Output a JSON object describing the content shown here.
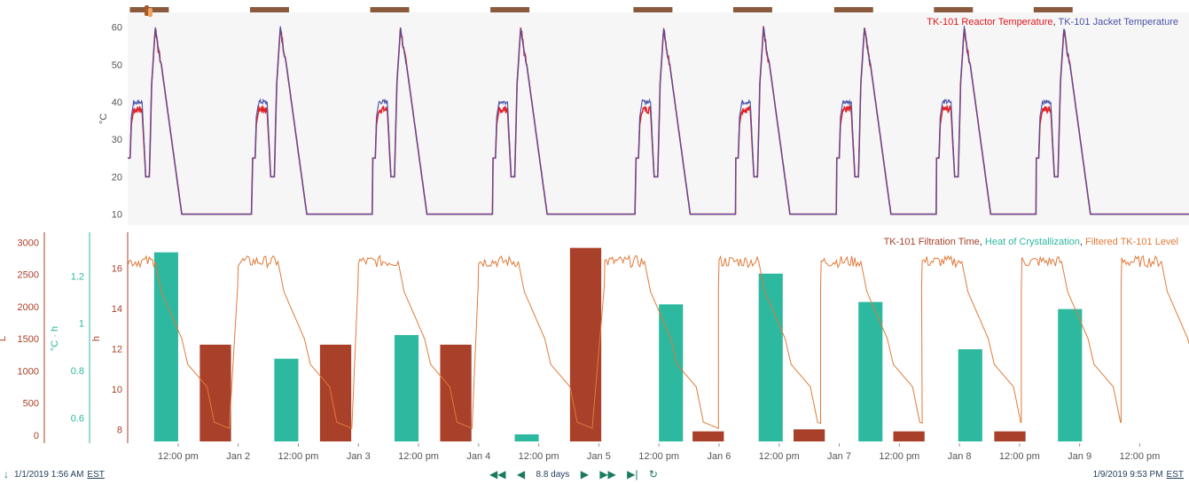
{
  "header": {
    "top_legend": [
      {
        "text": "TK-101 Reactor Temperature",
        "color": "#e0161b"
      },
      {
        "text": ", ",
        "color": "#333333"
      },
      {
        "text": "TK-101 Jacket Temperature",
        "color": "#4a52a8"
      }
    ],
    "bottom_legend": [
      {
        "text": "TK-101 Filtration Time",
        "color": "#a8402a"
      },
      {
        "text": ", ",
        "color": "#333333"
      },
      {
        "text": "Heat of Crystallization",
        "color": "#2db8a0"
      },
      {
        "text": ", ",
        "color": "#333333"
      },
      {
        "text": "Filtered TK-101 Level",
        "color": "#e07a3a"
      }
    ]
  },
  "footer": {
    "start_time": "1/1/2019 1:56 AM",
    "end_time": "1/9/2019 9:53 PM",
    "timezone": "EST",
    "range_label": "8.8 days",
    "icons": [
      "arrow-down-icon",
      "fast-back-icon",
      "step-back-icon",
      "step-forward-icon",
      "fast-forward-icon",
      "end-icon",
      "refresh-icon"
    ]
  },
  "chart_data": [
    {
      "type": "line",
      "ylabel": "°C",
      "ylim": [
        8,
        63
      ],
      "yticks": [
        10,
        20,
        30,
        40,
        50,
        60
      ],
      "x_range_days": [
        0.08,
        8.91
      ],
      "x_ticks": [
        {
          "t": 0.5,
          "label": "12:00 pm"
        },
        {
          "t": 1.0,
          "label": "Jan 2"
        },
        {
          "t": 1.5,
          "label": "12:00 pm"
        },
        {
          "t": 2.0,
          "label": "Jan 3"
        },
        {
          "t": 2.5,
          "label": "12:00 pm"
        },
        {
          "t": 3.0,
          "label": "Jan 4"
        },
        {
          "t": 3.5,
          "label": "12:00 pm"
        },
        {
          "t": 4.0,
          "label": "Jan 5"
        },
        {
          "t": 4.5,
          "label": "12:00 pm"
        },
        {
          "t": 5.0,
          "label": "Jan 6"
        },
        {
          "t": 5.5,
          "label": "12:00 pm"
        },
        {
          "t": 6.0,
          "label": "Jan 7"
        },
        {
          "t": 6.5,
          "label": "12:00 pm"
        },
        {
          "t": 7.0,
          "label": "Jan 8"
        },
        {
          "t": 7.5,
          "label": "12:00 pm"
        },
        {
          "t": 8.0,
          "label": "Jan 9"
        },
        {
          "t": 8.5,
          "label": "12:00 pm"
        }
      ],
      "batch_starts": [
        0.08,
        1.12,
        2.12,
        3.12,
        4.31,
        5.14,
        5.98,
        6.81,
        7.64
      ],
      "batch_bars": [
        0.26,
        1.26,
        2.26,
        3.26,
        4.45,
        5.28,
        6.12,
        6.95,
        7.78
      ],
      "profile": {
        "start": 25,
        "plateau_reactor": 38,
        "plateau_jacket": 40,
        "dip": 20,
        "peak": 60,
        "shoulder": 50,
        "low": 10
      },
      "series": [
        {
          "name": "TK-101 Reactor Temperature",
          "color": "#e0161b"
        },
        {
          "name": "TK-101 Jacket Temperature",
          "color": "#4a52a8"
        }
      ]
    },
    {
      "type": "bar",
      "axes": [
        {
          "label": "L",
          "color": "#a8402a",
          "ylim": [
            -100,
            3100
          ],
          "ticks": [
            0,
            500,
            1000,
            1500,
            2000,
            2500,
            3000
          ]
        },
        {
          "label": "°C · h",
          "color": "#2db8a0",
          "ylim": [
            0.5,
            1.37
          ],
          "ticks": [
            0.6,
            0.8,
            1.0,
            1.2
          ]
        },
        {
          "label": "h",
          "color": "#a8402a",
          "ylim": [
            7.4,
            17.6
          ],
          "ticks": [
            8,
            10,
            12,
            14,
            16
          ]
        }
      ],
      "series": [
        {
          "name": "TK-101 Filtration Time",
          "color": "#a8402a",
          "unit": "h",
          "bars": [
            {
              "t0": 0.68,
              "t1": 0.94,
              "value": 12.2
            },
            {
              "t0": 1.68,
              "t1": 1.94,
              "value": 12.2
            },
            {
              "t0": 2.68,
              "t1": 2.94,
              "value": 12.2
            },
            {
              "t0": 3.76,
              "t1": 4.02,
              "value": 17.0
            },
            {
              "t0": 4.78,
              "t1": 5.04,
              "value": 7.9
            },
            {
              "t0": 5.62,
              "t1": 5.88,
              "value": 8.0
            },
            {
              "t0": 6.45,
              "t1": 6.71,
              "value": 7.9
            },
            {
              "t0": 7.29,
              "t1": 7.55,
              "value": 7.9
            }
          ]
        },
        {
          "name": "Heat of Crystallization",
          "color": "#2db8a0",
          "unit": "°C · h",
          "bars": [
            {
              "t0": 0.3,
              "t1": 0.5,
              "value": 1.3
            },
            {
              "t0": 1.3,
              "t1": 1.5,
              "value": 0.85
            },
            {
              "t0": 2.3,
              "t1": 2.5,
              "value": 0.95
            },
            {
              "t0": 3.3,
              "t1": 3.5,
              "value": 0.53
            },
            {
              "t0": 4.5,
              "t1": 4.7,
              "value": 1.08
            },
            {
              "t0": 5.33,
              "t1": 5.53,
              "value": 1.21
            },
            {
              "t0": 6.16,
              "t1": 6.36,
              "value": 1.09
            },
            {
              "t0": 6.99,
              "t1": 7.19,
              "value": 0.89
            },
            {
              "t0": 7.82,
              "t1": 8.02,
              "value": 1.06
            }
          ]
        },
        {
          "name": "Filtered TK-101 Level",
          "color": "#e07a3a",
          "unit": "L",
          "pattern": [
            {
              "dt": 0.0,
              "v": 2700
            },
            {
              "dt": 0.33,
              "v": 2700
            },
            {
              "dt": 0.38,
              "v": 2230
            },
            {
              "dt": 0.55,
              "v": 1500
            },
            {
              "dt": 0.6,
              "v": 1100
            },
            {
              "dt": 0.76,
              "v": 750
            },
            {
              "dt": 0.82,
              "v": 200
            },
            {
              "dt": 0.95,
              "v": 100
            }
          ]
        }
      ],
      "level_cycle_starts": [
        -0.02,
        1.0,
        2.0,
        3.0,
        4.05,
        5.0,
        5.85,
        6.69,
        7.52,
        8.35
      ]
    }
  ]
}
